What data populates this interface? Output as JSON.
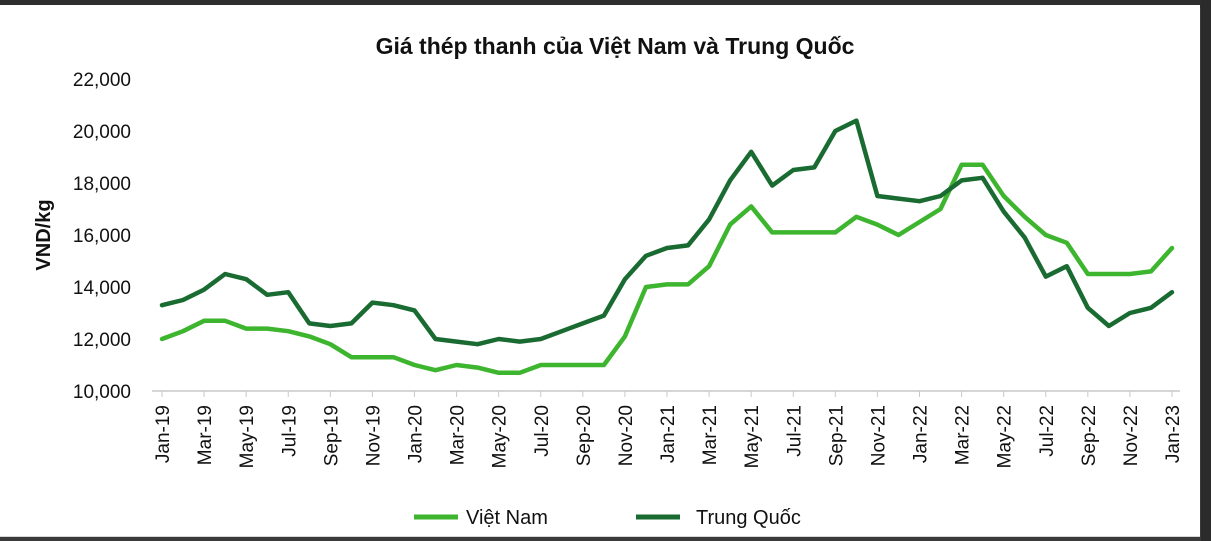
{
  "chart_data": {
    "type": "line",
    "title": "Giá thép thanh của Việt Nam và Trung Quốc",
    "ylabel": "VND/kg",
    "xlabel": "",
    "ylim": [
      10000,
      22000
    ],
    "yticks": [
      "10,000",
      "12,000",
      "14,000",
      "16,000",
      "18,000",
      "20,000",
      "22,000"
    ],
    "x": [
      "Jan-19",
      "Feb-19",
      "Mar-19",
      "Apr-19",
      "May-19",
      "Jun-19",
      "Jul-19",
      "Aug-19",
      "Sep-19",
      "Oct-19",
      "Nov-19",
      "Dec-19",
      "Jan-20",
      "Feb-20",
      "Mar-20",
      "Apr-20",
      "May-20",
      "Jun-20",
      "Jul-20",
      "Aug-20",
      "Sep-20",
      "Oct-20",
      "Nov-20",
      "Dec-20",
      "Jan-21",
      "Feb-21",
      "Mar-21",
      "Apr-21",
      "May-21",
      "Jun-21",
      "Jul-21",
      "Aug-21",
      "Sep-21",
      "Oct-21",
      "Nov-21",
      "Dec-21",
      "Jan-22",
      "Feb-22",
      "Mar-22",
      "Apr-22",
      "May-22",
      "Jun-22",
      "Jul-22",
      "Aug-22",
      "Sep-22",
      "Oct-22",
      "Nov-22",
      "Dec-22",
      "Jan-23"
    ],
    "xtick_labels": [
      "Jan-19",
      "Mar-19",
      "May-19",
      "Jul-19",
      "Sep-19",
      "Nov-19",
      "Jan-20",
      "Mar-20",
      "May-20",
      "Jul-20",
      "Sep-20",
      "Nov-20",
      "Jan-21",
      "Mar-21",
      "May-21",
      "Jul-21",
      "Sep-21",
      "Nov-21",
      "Jan-22",
      "Mar-22",
      "May-22",
      "Jul-22",
      "Sep-22",
      "Nov-22",
      "Jan-23"
    ],
    "series": [
      {
        "name": "Việt Nam",
        "color": "#3db52e",
        "values": [
          12000,
          12300,
          12700,
          12700,
          12400,
          12400,
          12300,
          12100,
          11800,
          11300,
          11300,
          11300,
          11000,
          10800,
          11000,
          10900,
          10700,
          10700,
          11000,
          11000,
          11000,
          11000,
          12100,
          14000,
          14100,
          14100,
          14800,
          16400,
          17100,
          16100,
          16100,
          16100,
          16100,
          16700,
          16400,
          16000,
          16500,
          17000,
          18700,
          18700,
          17500,
          16700,
          16000,
          15700,
          14500,
          14500,
          14500,
          14600,
          15500
        ]
      },
      {
        "name": "Trung Quốc",
        "color": "#1a6b32",
        "values": [
          13300,
          13500,
          13900,
          14500,
          14300,
          13700,
          13800,
          12600,
          12500,
          12600,
          13400,
          13300,
          13100,
          12000,
          11900,
          11800,
          12000,
          11900,
          12000,
          12300,
          12600,
          12900,
          14300,
          15200,
          15500,
          15600,
          16600,
          18100,
          19200,
          17900,
          18500,
          18600,
          20000,
          20400,
          17500,
          17400,
          17300,
          17500,
          18100,
          18200,
          16900,
          15900,
          14400,
          14800,
          13200,
          12500,
          13000,
          13200,
          13800
        ]
      }
    ],
    "legend": "bottom",
    "grid": false
  }
}
